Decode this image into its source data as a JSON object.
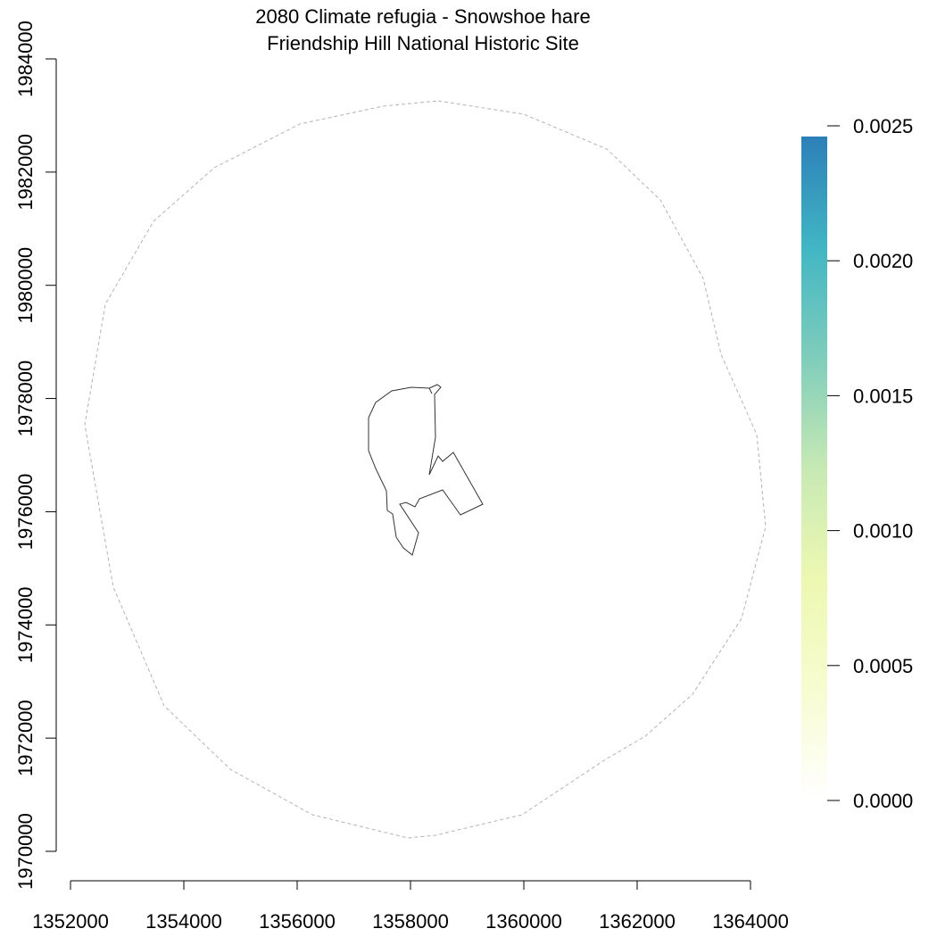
{
  "title": {
    "line1": "2080 Climate refugia - Snowshoe hare",
    "line2": "Friendship Hill National Historic Site"
  },
  "x_axis": {
    "ticks": [
      1352000,
      1354000,
      1356000,
      1358000,
      1360000,
      1362000,
      1364000
    ]
  },
  "y_axis": {
    "ticks": [
      1970000,
      1972000,
      1974000,
      1976000,
      1978000,
      1980000,
      1982000,
      1984000
    ]
  },
  "legend": {
    "ticks": [
      "0.0000",
      "0.0005",
      "0.0010",
      "0.0015",
      "0.0020",
      "0.0025"
    ],
    "min": 0,
    "max": 0.0025,
    "color_stops": [
      "#ffffff",
      "#f7fcd0",
      "#edf8b1",
      "#c7e9b4",
      "#7fcdbb",
      "#41b6c4",
      "#2c7fb8"
    ]
  },
  "colors": {
    "buffer": "#b3b3b3",
    "boundary": "#333333"
  }
}
